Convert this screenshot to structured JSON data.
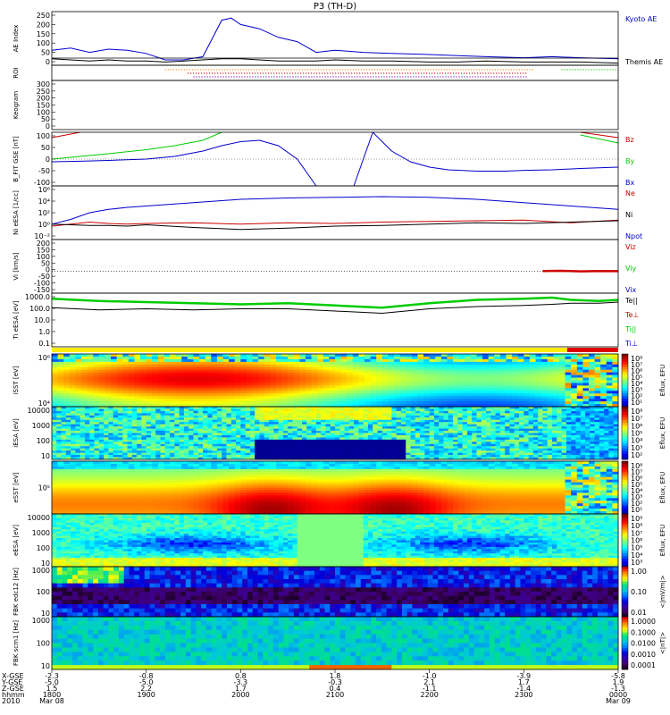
{
  "title": "P3 (TH-D)",
  "colors": {
    "frame": "#000000",
    "blue": "#0000cc",
    "red": "#cc0000",
    "green": "#00cc00",
    "black": "#000000",
    "purple": "#8000a0",
    "orange": "#ff8000"
  },
  "panels": [
    {
      "key": "ae",
      "ylabel": "AE Index",
      "yticks": [
        "250",
        "200",
        "150",
        "100",
        "50",
        "0"
      ],
      "legend": [
        {
          "text": "Kyoto AE",
          "color": "#0000cc"
        },
        {
          "text": "Themis AE",
          "color": "#000000"
        }
      ]
    },
    {
      "key": "roi",
      "ylabel": "ROI",
      "yticks": [],
      "legend": []
    },
    {
      "key": "keogram",
      "ylabel": "Keogram",
      "yticks": [
        "300",
        "250",
        "200",
        "150",
        "100",
        "50",
        "0"
      ],
      "legend": []
    },
    {
      "key": "bfit",
      "ylabel": "B_FIT GSE [nT]",
      "yticks": [
        "100",
        "50",
        "0",
        "-50",
        "-100"
      ],
      "legend": [
        {
          "text": "Bz",
          "color": "#cc0000"
        },
        {
          "text": "By",
          "color": "#00cc00"
        },
        {
          "text": "Bx",
          "color": "#0000cc"
        }
      ]
    },
    {
      "key": "ni",
      "ylabel": "Ni eESA [1/cc]",
      "yticks": [
        "10⁶",
        "10⁴",
        "10²",
        "10⁰",
        "10⁻²"
      ],
      "legend": [
        {
          "text": "Ne",
          "color": "#cc0000"
        },
        {
          "text": "Ni",
          "color": "#000000"
        },
        {
          "text": "Npot",
          "color": "#0000cc"
        }
      ]
    },
    {
      "key": "vi",
      "ylabel": "Vi [km/s]",
      "yticks": [
        "200",
        "150",
        "100",
        "50",
        "0",
        "-50",
        "-100",
        "-150"
      ],
      "legend": [
        {
          "text": "Viz",
          "color": "#cc0000"
        },
        {
          "text": "Viy",
          "color": "#00cc00"
        },
        {
          "text": "Vix",
          "color": "#0000cc"
        }
      ]
    },
    {
      "key": "ti",
      "ylabel": "Ti eESA [eV]",
      "yticks": [
        "1000.0",
        "100.0",
        "10.0",
        "1.0",
        "0.1"
      ],
      "legend": [
        {
          "text": "Te||",
          "color": "#000000"
        },
        {
          "text": "Te⊥",
          "color": "#cc0000"
        },
        {
          "text": "Ti||",
          "color": "#00cc00"
        },
        {
          "text": "Ti⊥",
          "color": "#0000cc"
        }
      ]
    },
    {
      "key": "sst_i",
      "ylabel": "iSST [eV]",
      "yticks": [
        "10⁶",
        "10⁴"
      ],
      "legend": []
    },
    {
      "key": "esa_i",
      "ylabel": "iESA [eV]",
      "yticks": [
        "10000",
        "1000",
        "100",
        "10"
      ],
      "legend": []
    },
    {
      "key": "sst_e",
      "ylabel": "eSST [eV]",
      "yticks": [
        "10⁵"
      ],
      "legend": []
    },
    {
      "key": "esa_e",
      "ylabel": "eESA [eV]",
      "yticks": [
        "10000",
        "1000",
        "100",
        "10"
      ],
      "legend": []
    },
    {
      "key": "fbk_edc",
      "ylabel": "FBK edc12 [Hz]",
      "yticks": [
        "1000",
        "100",
        "10"
      ],
      "legend": []
    },
    {
      "key": "fbk_scm",
      "ylabel": "FBK scm1 [Hz]",
      "yticks": [
        "1000",
        "100",
        "10"
      ],
      "legend": []
    }
  ],
  "colorbars": [
    {
      "ticks": [
        "10⁸",
        "10⁷",
        "10⁶",
        "10⁵",
        "10⁴",
        "10³",
        "10²",
        "10¹"
      ],
      "label": "Eflux, EFU"
    },
    {
      "ticks": [
        "10⁸",
        "10⁷",
        "10⁶",
        "10⁵",
        "10⁴",
        "10³",
        "10²"
      ],
      "label": "Eflux, EFU"
    },
    {
      "ticks": [
        "10⁸",
        "10⁷",
        "10⁶",
        "10⁵",
        "10⁴",
        "10³",
        "10²",
        "10¹"
      ],
      "label": "Eflux, EFU"
    },
    {
      "ticks": [
        "10⁹",
        "10⁸",
        "10⁷",
        "10⁶",
        "10⁵",
        "10⁴",
        "10³"
      ],
      "label": "Eflux, EFU"
    },
    {
      "ticks": [
        "1.00",
        "0.10",
        "0.01"
      ],
      "label": "<|mV/m|>"
    },
    {
      "ticks": [
        "1.0000",
        "0.1000",
        "0.0100",
        "0.0010",
        "0.0001"
      ],
      "label": "<|nT|>"
    }
  ],
  "time_axis": {
    "row_labels": [
      "X-GSE",
      "Y-GSE",
      "Z-GSE",
      "hhmm",
      "2010"
    ],
    "ticks": [
      {
        "x_gse": "-2.3",
        "y_gse": "-5.0",
        "z_gse": "1.5",
        "hhmm": "1800",
        "date": "Mar 08"
      },
      {
        "x_gse": "-0.8",
        "y_gse": "-5.0",
        "z_gse": "2.2",
        "hhmm": "1900",
        "date": ""
      },
      {
        "x_gse": "0.8",
        "y_gse": "-3.3",
        "z_gse": "1.7",
        "hhmm": "2000",
        "date": ""
      },
      {
        "x_gse": "1.8",
        "y_gse": "-0.3",
        "z_gse": "0.4",
        "hhmm": "2100",
        "date": ""
      },
      {
        "x_gse": "-1.0",
        "y_gse": "2.1",
        "z_gse": "-1.1",
        "hhmm": "2200",
        "date": ""
      },
      {
        "x_gse": "-3.9",
        "y_gse": "1.7",
        "z_gse": "-1.4",
        "hhmm": "2300",
        "date": ""
      },
      {
        "x_gse": "-5.8",
        "y_gse": "1.9",
        "z_gse": "-1.3",
        "hhmm": "0000",
        "date": "Mar 09"
      }
    ]
  },
  "chart_data": {
    "type": "line",
    "title": "P3 (TH-D)",
    "x_range_hours": [
      18,
      24
    ],
    "ae": {
      "ylim": [
        0,
        250
      ],
      "x": [
        18.0,
        18.2,
        18.4,
        18.6,
        18.8,
        19.0,
        19.2,
        19.4,
        19.6,
        19.8,
        19.9,
        20.0,
        20.2,
        20.4,
        20.6,
        20.8,
        21.0,
        21.3,
        21.6,
        22.0,
        22.3,
        22.6,
        23.0,
        23.3,
        23.6,
        24.0
      ],
      "series": [
        {
          "name": "Kyoto AE",
          "values": [
            70,
            80,
            60,
            75,
            70,
            55,
            25,
            25,
            40,
            210,
            220,
            190,
            170,
            130,
            110,
            60,
            70,
            60,
            55,
            50,
            45,
            40,
            35,
            40,
            35,
            30
          ]
        },
        {
          "name": "Themis AE",
          "values": [
            30,
            25,
            20,
            25,
            20,
            20,
            15,
            20,
            25,
            30,
            30,
            30,
            25,
            20,
            20,
            20,
            25,
            20,
            20,
            15,
            15,
            20,
            15,
            15,
            15,
            10
          ]
        }
      ]
    },
    "bfit": {
      "ylim": [
        -100,
        100
      ],
      "x": [
        18.0,
        18.3,
        18.6,
        19.0,
        19.3,
        19.6,
        19.8,
        20.0,
        20.2,
        20.4,
        20.6,
        20.8,
        21.0,
        21.2,
        21.4,
        21.6,
        21.8,
        22.0,
        22.2,
        22.5,
        22.8,
        23.0,
        23.3,
        23.6,
        24.0
      ],
      "series": [
        {
          "name": "Bz",
          "values": [
            80,
            100,
            null,
            null,
            null,
            null,
            null,
            null,
            null,
            null,
            null,
            null,
            null,
            null,
            null,
            null,
            null,
            null,
            null,
            null,
            null,
            null,
            null,
            100,
            80
          ]
        },
        {
          "name": "By",
          "values": [
            0,
            10,
            20,
            35,
            50,
            70,
            100,
            null,
            null,
            null,
            null,
            null,
            null,
            null,
            null,
            null,
            null,
            null,
            null,
            null,
            null,
            null,
            null,
            90,
            60
          ]
        },
        {
          "name": "Bx",
          "values": [
            -10,
            -8,
            -5,
            0,
            10,
            30,
            50,
            65,
            70,
            50,
            0,
            -100,
            null,
            -100,
            100,
            30,
            -10,
            -30,
            -40,
            -45,
            -45,
            -42,
            -40,
            -35,
            -30
          ]
        }
      ]
    },
    "ni": {
      "ylim_log10": [
        -2,
        6
      ],
      "x": [
        18.0,
        18.2,
        18.4,
        18.6,
        18.8,
        19.0,
        19.5,
        20.0,
        20.5,
        21.0,
        21.5,
        22.0,
        22.5,
        23.0,
        23.5,
        24.0
      ],
      "series": [
        {
          "name": "Ne",
          "values": [
            0.0,
            0.3,
            0.6,
            0.4,
            0.3,
            0.4,
            0.5,
            0.3,
            0.5,
            0.4,
            0.6,
            0.7,
            0.8,
            0.9,
            0.5,
            0.9
          ]
        },
        {
          "name": "Ni",
          "values": [
            0.3,
            0.2,
            0.1,
            0.1,
            0.0,
            0.2,
            -0.2,
            -0.5,
            -0.3,
            0.0,
            0.1,
            0.3,
            0.5,
            0.4,
            0.6,
            0.8
          ]
        },
        {
          "name": "Npot",
          "values": [
            0.3,
            1.0,
            2.0,
            2.5,
            2.8,
            3.0,
            3.5,
            4.0,
            4.2,
            4.3,
            4.4,
            4.3,
            4.0,
            3.5,
            3.0,
            2.5
          ]
        }
      ]
    },
    "vi": {
      "ylim": [
        -175,
        250
      ],
      "x": [
        23.2,
        23.4,
        23.6,
        23.8,
        24.0
      ],
      "series": [
        {
          "name": "Viz",
          "values": [
            0,
            2,
            -2,
            1,
            -1
          ]
        }
      ]
    },
    "ti": {
      "ylim_log10": [
        -1.3,
        3.5
      ],
      "x": [
        18.0,
        18.5,
        19.0,
        19.5,
        20.0,
        20.5,
        21.0,
        21.5,
        22.0,
        22.5,
        23.0,
        23.3,
        23.5,
        23.8,
        24.0
      ],
      "series": [
        {
          "name": "Te||",
          "values": [
            2.2,
            2.0,
            2.1,
            2.0,
            2.1,
            2.1,
            1.9,
            1.7,
            2.1,
            2.3,
            2.4,
            2.5,
            2.6,
            2.6,
            2.7
          ]
        },
        {
          "name": "Ti||",
          "values": [
            3.0,
            2.8,
            2.7,
            2.6,
            2.5,
            2.6,
            2.4,
            2.2,
            2.6,
            2.9,
            3.0,
            3.1,
            2.9,
            2.8,
            2.9
          ]
        }
      ]
    }
  }
}
